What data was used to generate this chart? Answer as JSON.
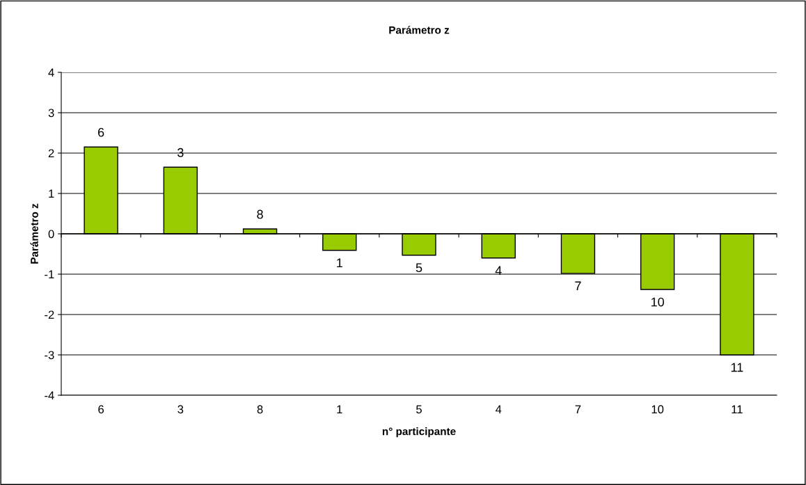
{
  "chart_data": {
    "type": "bar",
    "title": "Parámetro z",
    "xlabel": "n° participante",
    "ylabel": "Parámetro z",
    "categories": [
      "6",
      "3",
      "8",
      "1",
      "5",
      "4",
      "7",
      "10",
      "11"
    ],
    "values": [
      2.15,
      1.65,
      0.12,
      -0.41,
      -0.53,
      -0.6,
      -0.98,
      -1.38,
      -3.0
    ],
    "color": "#99cc00",
    "ylim": [
      -4,
      4
    ],
    "yticks": [
      -4,
      -3,
      -2,
      -1,
      0,
      1,
      2,
      3,
      4
    ],
    "grid": "y",
    "annotations": [
      {
        "text": "6",
        "x": "6",
        "y": 2.15
      },
      {
        "text": "3",
        "x": "3",
        "y": 1.65
      },
      {
        "text": "8",
        "x": "8",
        "y": 0.12
      },
      {
        "text": "1",
        "x": "1",
        "y": -0.41
      },
      {
        "text": "5",
        "x": "5",
        "y": -0.53
      },
      {
        "text": "4",
        "x": "4",
        "y": -0.6
      },
      {
        "text": "7",
        "x": "7",
        "y": -0.98
      },
      {
        "text": "10",
        "x": "10",
        "y": -1.38
      },
      {
        "text": "11",
        "x": "11",
        "y": -3.0
      }
    ]
  }
}
